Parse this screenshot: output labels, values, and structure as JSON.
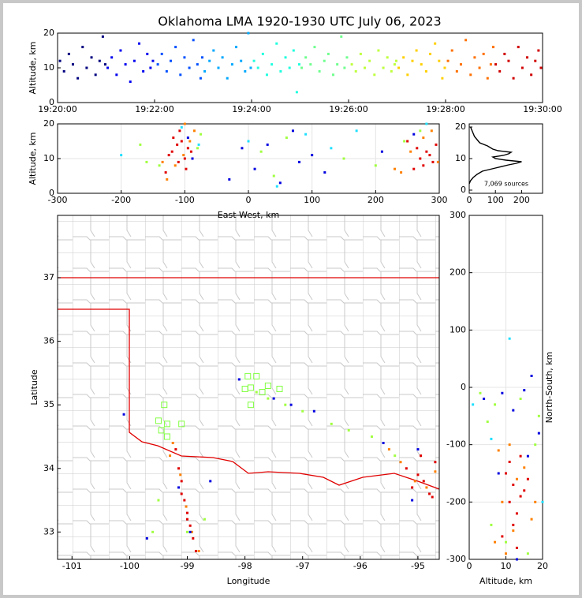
{
  "chart_data": [
    {
      "type": "scatter",
      "title": "Oklahoma LMA 1920-1930 UTC July 06, 2023",
      "ylabel": "Altitude, km",
      "xlim": [
        "19:20:00",
        "19:30:00"
      ],
      "xticks": [
        "19:20:00",
        "19:22:00",
        "19:24:00",
        "19:26:00",
        "19:28:00",
        "19:30:00"
      ],
      "ylim": [
        0,
        20
      ],
      "yticks": [
        0,
        10,
        20
      ],
      "grid": false,
      "series": [
        {
          "color": "#00007f",
          "x": [
            "19:20:03",
            "19:20:08",
            "19:20:14",
            "19:20:19",
            "19:20:25",
            "19:20:31",
            "19:20:36",
            "19:20:42",
            "19:20:47",
            "19:20:52",
            "19:20:56",
            "19:20:59"
          ],
          "y": [
            12,
            9,
            14,
            11,
            7,
            16,
            10,
            13,
            8,
            12,
            19,
            11
          ]
        },
        {
          "color": "#0000f0",
          "x": [
            "19:21:02",
            "19:21:07",
            "19:21:13",
            "19:21:18",
            "19:21:24",
            "19:21:30",
            "19:21:35",
            "19:21:41",
            "19:21:46",
            "19:21:51",
            "19:21:55",
            "19:21:58"
          ],
          "y": [
            10,
            13,
            8,
            15,
            11,
            6,
            12,
            17,
            9,
            14,
            10,
            12
          ]
        },
        {
          "color": "#0050ff",
          "x": [
            "19:22:04",
            "19:22:09",
            "19:22:15",
            "19:22:20",
            "19:22:26",
            "19:22:32",
            "19:22:37",
            "19:22:43",
            "19:22:48",
            "19:22:53",
            "19:22:57",
            "19:22:59"
          ],
          "y": [
            11,
            14,
            9,
            12,
            16,
            8,
            13,
            10,
            18,
            11,
            7,
            13
          ]
        },
        {
          "color": "#00a8ff",
          "x": [
            "19:23:02",
            "19:23:08",
            "19:23:13",
            "19:23:19",
            "19:23:24",
            "19:23:30",
            "19:23:36",
            "19:23:41",
            "19:23:47",
            "19:23:52",
            "19:23:56",
            "19:23:59"
          ],
          "y": [
            9,
            12,
            15,
            10,
            13,
            7,
            11,
            16,
            12,
            9,
            20,
            10
          ]
        },
        {
          "color": "#20ffdf",
          "x": [
            "19:24:03",
            "19:24:08",
            "19:24:14",
            "19:24:19",
            "19:24:25",
            "19:24:31",
            "19:24:36",
            "19:24:42",
            "19:24:47",
            "19:24:52",
            "19:24:56",
            "19:24:59"
          ],
          "y": [
            12,
            10,
            14,
            8,
            11,
            17,
            9,
            13,
            10,
            15,
            3,
            11
          ]
        },
        {
          "color": "#70ff8f",
          "x": [
            "19:25:02",
            "19:25:07",
            "19:25:13",
            "19:25:18",
            "19:25:24",
            "19:25:30",
            "19:25:35",
            "19:25:41",
            "19:25:46",
            "19:25:51",
            "19:25:55",
            "19:25:58"
          ],
          "y": [
            10,
            13,
            11,
            16,
            9,
            12,
            14,
            8,
            11,
            19,
            10,
            13
          ]
        },
        {
          "color": "#bfff3f",
          "x": [
            "19:26:04",
            "19:26:09",
            "19:26:15",
            "19:26:20",
            "19:26:26",
            "19:26:32",
            "19:26:37",
            "19:26:43",
            "19:26:48",
            "19:26:53",
            "19:26:57",
            "19:26:59"
          ],
          "y": [
            11,
            9,
            14,
            10,
            12,
            8,
            15,
            10,
            13,
            9,
            11,
            12
          ]
        },
        {
          "color": "#ffd000",
          "x": [
            "19:27:02",
            "19:27:08",
            "19:27:13",
            "19:27:19",
            "19:27:24",
            "19:27:30",
            "19:27:36",
            "19:27:41",
            "19:27:47",
            "19:27:52",
            "19:27:56",
            "19:27:59"
          ],
          "y": [
            10,
            13,
            8,
            12,
            15,
            11,
            9,
            14,
            17,
            12,
            7,
            10
          ]
        },
        {
          "color": "#ff7000",
          "x": [
            "19:28:03",
            "19:28:08",
            "19:28:14",
            "19:28:19",
            "19:28:25",
            "19:28:31",
            "19:28:36",
            "19:28:42",
            "19:28:47",
            "19:28:52",
            "19:28:56",
            "19:28:59"
          ],
          "y": [
            12,
            15,
            9,
            11,
            18,
            8,
            13,
            10,
            14,
            7,
            11,
            16
          ]
        },
        {
          "color": "#d00000",
          "x": [
            "19:29:02",
            "19:29:07",
            "19:29:13",
            "19:29:18",
            "19:29:24",
            "19:29:30",
            "19:29:35",
            "19:29:41",
            "19:29:46",
            "19:29:51",
            "19:29:55",
            "19:29:58"
          ],
          "y": [
            11,
            9,
            14,
            12,
            7,
            16,
            10,
            13,
            8,
            12,
            15,
            10
          ]
        }
      ]
    },
    {
      "type": "scatter",
      "xlabel": "East-West, km",
      "ylabel": "Altitude, km",
      "xlim": [
        -300,
        300
      ],
      "xticks": [
        -300,
        -200,
        -100,
        0,
        100,
        200,
        300
      ],
      "ylim": [
        0,
        20
      ],
      "yticks": [
        0,
        10,
        20
      ],
      "grid": true,
      "series": [
        {
          "color": "#e00000",
          "x": [
            -120,
            -112,
            -105,
            -100,
            -95,
            -110,
            -118,
            -125,
            -130,
            -108,
            -98,
            -90,
            270,
            280,
            290,
            295,
            285,
            275,
            260,
            250,
            265
          ],
          "y": [
            12,
            14,
            15,
            10,
            13,
            9,
            16,
            11,
            6,
            18,
            7,
            12,
            10,
            12,
            9,
            14,
            11,
            8,
            7,
            15,
            13
          ]
        },
        {
          "color": "#ff8000",
          "x": [
            -115,
            -102,
            -92,
            -85,
            -128,
            -135,
            -100,
            255,
            240,
            275,
            288,
            298,
            230
          ],
          "y": [
            8,
            11,
            15,
            18,
            4,
            9,
            20,
            12,
            6,
            16,
            18,
            9,
            7
          ]
        },
        {
          "color": "#a0ff40",
          "x": [
            -80,
            -75,
            -140,
            -160,
            -170,
            20,
            40,
            60,
            150,
            200,
            245,
            270
          ],
          "y": [
            13,
            17,
            8,
            9,
            14,
            12,
            5,
            16,
            10,
            8,
            15,
            18
          ]
        },
        {
          "color": "#0000e0",
          "x": [
            -95,
            -88,
            10,
            30,
            50,
            70,
            80,
            100,
            120,
            -30,
            -10,
            210,
            260
          ],
          "y": [
            16,
            10,
            7,
            14,
            3,
            18,
            9,
            11,
            6,
            4,
            13,
            12,
            17
          ]
        },
        {
          "color": "#20e0ff",
          "x": [
            -105,
            -78,
            0,
            45,
            90,
            130,
            170,
            280,
            -200
          ],
          "y": [
            19,
            14,
            15,
            2,
            17,
            13,
            18,
            20,
            11
          ]
        }
      ]
    },
    {
      "type": "line",
      "annotation": "7,069 sources",
      "xlim": [
        0,
        280
      ],
      "xticks": [
        0,
        100,
        200
      ],
      "ylim": [
        -1,
        21
      ],
      "yticks": [
        0,
        10,
        20
      ],
      "color": "#000000",
      "x": [
        0,
        5,
        15,
        30,
        50,
        100,
        150,
        180,
        200,
        140,
        100,
        90,
        130,
        150,
        160,
        110,
        90,
        70,
        40,
        30,
        20,
        15,
        10,
        5
      ],
      "y": [
        2,
        3,
        4,
        5,
        6,
        7,
        8,
        8.5,
        9,
        9.5,
        10,
        10.5,
        11,
        11.5,
        12,
        12.5,
        13,
        14,
        15,
        16,
        17,
        18,
        19,
        20
      ]
    },
    {
      "type": "scatter",
      "xlabel": "Longitude",
      "ylabel": "Latitude",
      "xlim": [
        -101.25,
        -94.63
      ],
      "xticks": [
        -101,
        -100,
        -99,
        -98,
        -97,
        -96,
        -95
      ],
      "ylim": [
        32.57,
        37.98
      ],
      "yticks": [
        33,
        34,
        35,
        36,
        37
      ],
      "grid": false,
      "series": [
        {
          "color": "#e00000",
          "x": [
            -99.2,
            -99.15,
            -99.1,
            -99.05,
            -99.0,
            -98.95,
            -98.9,
            -98.85,
            -99.1,
            -99.0,
            -95.2,
            -95.0,
            -94.9,
            -94.8,
            -94.7,
            -95.1,
            -94.95,
            -94.75
          ],
          "y": [
            34.3,
            34.0,
            33.8,
            33.5,
            33.3,
            33.1,
            32.9,
            32.7,
            33.6,
            33.2,
            34.0,
            33.9,
            33.8,
            33.6,
            34.1,
            33.7,
            34.2,
            33.55
          ]
        },
        {
          "color": "#ff8000",
          "x": [
            -99.25,
            -99.12,
            -99.02,
            -98.92,
            -98.8,
            -99.3,
            -95.3,
            -95.05,
            -94.85,
            -94.7,
            -95.5
          ],
          "y": [
            34.4,
            33.9,
            33.4,
            33.0,
            32.7,
            34.2,
            34.1,
            33.8,
            33.7,
            33.95,
            34.3
          ]
        },
        {
          "color": "#a0ff40",
          "x": [
            -99.0,
            -98.7,
            -99.5,
            -99.6,
            -95.8,
            -96.2,
            -96.5,
            -97.0,
            -97.3,
            -97.6,
            -97.8,
            -95.4
          ],
          "y": [
            33.0,
            33.2,
            33.5,
            33.0,
            34.5,
            34.6,
            34.7,
            34.9,
            35.0,
            35.1,
            35.2,
            34.2
          ]
        },
        {
          "color": "#0000e0",
          "x": [
            -99.15,
            -98.95,
            -98.6,
            -99.7,
            -95.6,
            -95.1,
            -96.8,
            -97.2,
            -97.5,
            -98.1,
            -100.1,
            -95.0
          ],
          "y": [
            33.7,
            33.0,
            33.8,
            32.9,
            34.4,
            33.5,
            34.9,
            35.0,
            35.1,
            35.4,
            34.85,
            34.3
          ]
        },
        {
          "color": "#80ff40",
          "marker": "square",
          "x": [
            -99.4,
            -99.5,
            -99.35,
            -99.1,
            -99.45,
            -99.35,
            -97.95,
            -97.8,
            -98.0,
            -97.9,
            -97.7,
            -97.4,
            -97.9,
            -97.6
          ],
          "y": [
            35.0,
            34.75,
            34.7,
            34.7,
            34.6,
            34.5,
            35.45,
            35.45,
            35.25,
            35.27,
            35.2,
            35.25,
            35.0,
            35.3
          ]
        }
      ]
    },
    {
      "type": "scatter",
      "xlabel": "Altitude, km",
      "ylabel": "North-South, km",
      "xlim": [
        0,
        20
      ],
      "xticks": [
        0,
        10,
        20
      ],
      "ylim": [
        -300,
        300
      ],
      "yticks": [
        -300,
        -200,
        -100,
        0,
        100,
        200,
        300
      ],
      "grid": true,
      "series": [
        {
          "color": "#e00000",
          "x": [
            10,
            12,
            14,
            11,
            13,
            15,
            12,
            9,
            16,
            13,
            11,
            14
          ],
          "y": [
            -150,
            -170,
            -190,
            -200,
            -220,
            -180,
            -240,
            -260,
            -160,
            -280,
            -130,
            -120
          ]
        },
        {
          "color": "#ff8000",
          "x": [
            8,
            9,
            12,
            15,
            17,
            10,
            13,
            18,
            7,
            11
          ],
          "y": [
            -110,
            -200,
            -250,
            -140,
            -230,
            -290,
            -160,
            -200,
            -270,
            -100
          ]
        },
        {
          "color": "#a0ff40",
          "x": [
            5,
            7,
            18,
            19,
            6,
            10,
            14,
            3,
            16
          ],
          "y": [
            -60,
            -30,
            -100,
            -50,
            -240,
            -270,
            -20,
            -10,
            -290
          ]
        },
        {
          "color": "#0000e0",
          "x": [
            9,
            12,
            15,
            17,
            19,
            4,
            8,
            13,
            16
          ],
          "y": [
            -10,
            -40,
            -5,
            20,
            -80,
            -20,
            -150,
            -300,
            -120
          ]
        },
        {
          "color": "#20e0ff",
          "x": [
            11,
            1,
            20,
            6
          ],
          "y": [
            85,
            -30,
            -200,
            -90
          ]
        }
      ]
    }
  ]
}
